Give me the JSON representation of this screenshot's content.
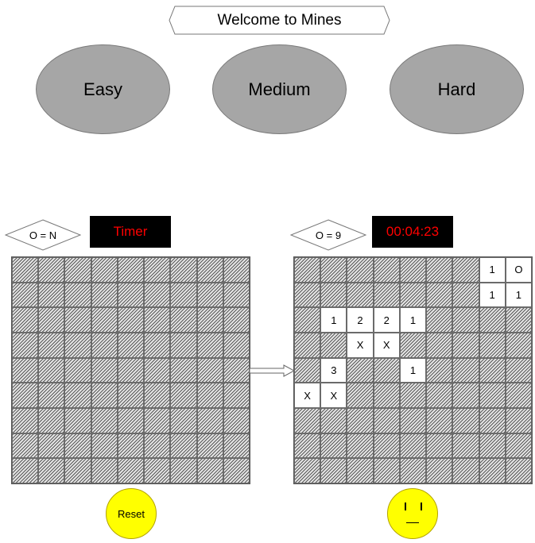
{
  "title": "Welcome to Mines",
  "difficulty": [
    {
      "label": "Easy"
    },
    {
      "label": "Medium"
    },
    {
      "label": "Hard"
    }
  ],
  "left_panel": {
    "mine_counter": "O = N",
    "timer": "Timer",
    "reset_label": "Reset",
    "rows": 9,
    "cols": 9
  },
  "right_panel": {
    "mine_counter": "O = 9",
    "timer": "00:04:23",
    "rows": 9,
    "cols": 9,
    "opened_cells": [
      {
        "r": 0,
        "c": 7,
        "v": "1"
      },
      {
        "r": 0,
        "c": 8,
        "v": "O"
      },
      {
        "r": 1,
        "c": 7,
        "v": "1"
      },
      {
        "r": 1,
        "c": 8,
        "v": "1"
      },
      {
        "r": 2,
        "c": 1,
        "v": "1"
      },
      {
        "r": 2,
        "c": 2,
        "v": "2"
      },
      {
        "r": 2,
        "c": 3,
        "v": "2"
      },
      {
        "r": 2,
        "c": 4,
        "v": "1"
      },
      {
        "r": 3,
        "c": 2,
        "v": "X"
      },
      {
        "r": 3,
        "c": 3,
        "v": "X"
      },
      {
        "r": 4,
        "c": 1,
        "v": "3"
      },
      {
        "r": 4,
        "c": 4,
        "v": "1"
      },
      {
        "r": 5,
        "c": 0,
        "v": "X"
      },
      {
        "r": 5,
        "c": 1,
        "v": "X"
      }
    ],
    "face": "neutral-face"
  },
  "colors": {
    "ellipse": "#a6a6a6",
    "timer_bg": "#000000",
    "timer_text": "#ff0000",
    "button": "#ffff00"
  }
}
